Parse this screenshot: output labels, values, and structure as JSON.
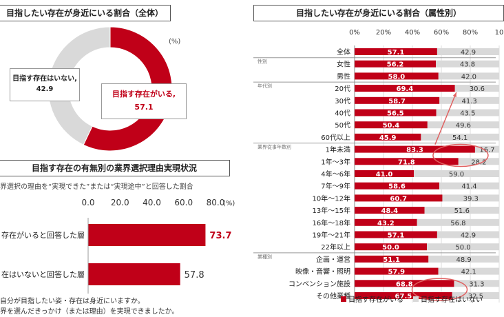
{
  "donut": {
    "title": "目指したい存在が身近にいる割合（全体）",
    "unit": "(%)",
    "label_no": "目指す存在はいない,",
    "label_yes": "目指す存在がいる,"
  },
  "reason": {
    "title": "目指す存在の有無別の業界選択理由実現状況",
    "subtitle": "界選択の理由を“実現できた”または“実現途中”と回答した割合",
    "unit": "(%)",
    "note1": "自分が目指したい姿・存在は身近にいますか。",
    "note2": "界を選んだきっかけ（または理由）を実現できましたか。"
  },
  "attr": {
    "title": "目指したい存在が身近にいる割合（属性別）",
    "groups": [
      "性別",
      "年代別",
      "業界従事年数別",
      "業種別"
    ],
    "legend_yes": "目指す存在がいる",
    "legend_no": "目指す存在はいない"
  },
  "colors": {
    "yes": "#C00018",
    "no": "#D9D9D9",
    "accent": "#E06060"
  },
  "chart_data": [
    {
      "type": "pie",
      "categories": [
        "目指す存在がいる",
        "目指す存在はいない"
      ],
      "values": [
        57.1,
        42.9
      ],
      "title": "目指したい存在が身近にいる割合（全体）"
    },
    {
      "type": "bar",
      "orientation": "horizontal",
      "categories": [
        "存在がいると回答した層",
        "在はいないと回答した層"
      ],
      "values": [
        73.7,
        57.8
      ],
      "xlim": [
        0,
        80
      ],
      "xticks": [
        "0.0",
        "20.0",
        "40.0",
        "60.0",
        "80.0"
      ],
      "title": "目指す存在の有無別の業界選択理由実現状況"
    },
    {
      "type": "bar",
      "orientation": "horizontal",
      "stacked": true,
      "title": "目指したい存在が身近にいる割合（属性別）",
      "xticks": [
        "0%",
        "20%",
        "40%",
        "60%",
        "80%",
        "10"
      ],
      "categories": [
        "全体",
        "女性",
        "男性",
        "20代",
        "30代",
        "40代",
        "50代",
        "60代以上",
        "1年未満",
        "1年～3年",
        "4年～6年",
        "7年～9年",
        "10年～12年",
        "13年～15年",
        "16年～18年",
        "19年～21年",
        "22年以上",
        "企画・運営",
        "映像・音響・照明",
        "コンベンション施設",
        "その他業種"
      ],
      "series": [
        {
          "name": "目指す存在がいる",
          "values": [
            57.1,
            56.2,
            58.0,
            69.4,
            58.7,
            56.5,
            50.4,
            45.9,
            83.3,
            71.8,
            41.0,
            58.6,
            60.7,
            48.4,
            43.2,
            57.1,
            50.0,
            51.1,
            57.9,
            68.8,
            67.5
          ]
        },
        {
          "name": "目指す存在はいない",
          "values": [
            42.9,
            43.8,
            42.0,
            30.6,
            41.3,
            43.5,
            49.6,
            54.1,
            16.7,
            28.2,
            59.0,
            41.4,
            39.3,
            51.6,
            56.8,
            42.9,
            50.0,
            48.9,
            42.1,
            31.3,
            32.5
          ]
        }
      ]
    }
  ]
}
